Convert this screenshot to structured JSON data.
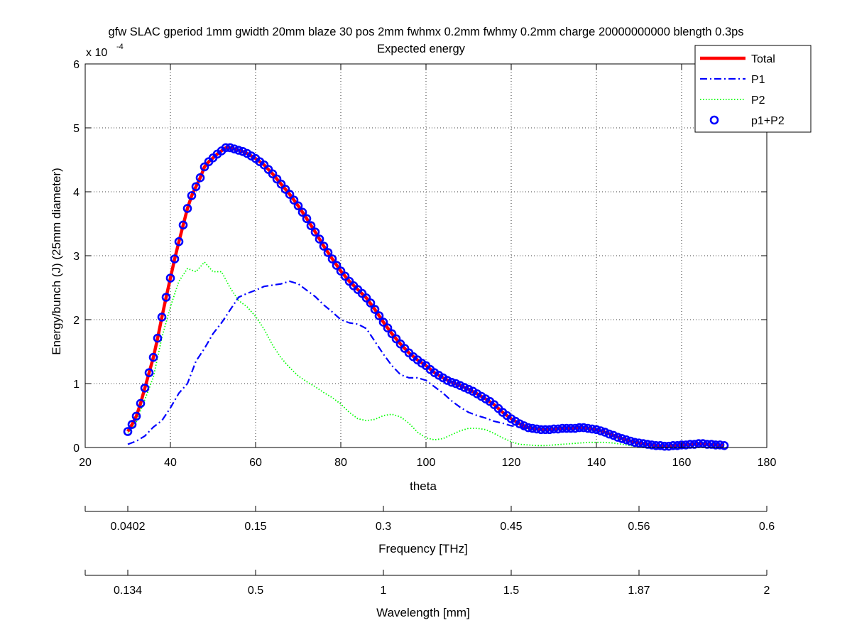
{
  "chart_data": {
    "type": "line",
    "title": "gfw SLAC gperiod 1mm gwidth 20mm blaze 30 pos 2mm fwhmx 0.2mm fwhmy 0.2mm charge 20000000000 blength 0.3ps",
    "subtitle": "Expected energy",
    "xlabel": "theta",
    "ylabel": "Energy/bunch (J) (25mm diameter)",
    "y_exponent_base": "x 10",
    "y_exponent_power": "-4",
    "xlim": [
      20,
      180
    ],
    "ylim": [
      0,
      6
    ],
    "xticks": [
      20,
      40,
      60,
      80,
      100,
      120,
      140,
      160,
      180
    ],
    "yticks": [
      0,
      1,
      2,
      3,
      4,
      5,
      6
    ],
    "grid": true,
    "legend_position": "top-right",
    "series": [
      {
        "name": "Total",
        "style": "solid",
        "color": "#ff0000",
        "x": [
          30,
          31,
          32,
          33,
          34,
          35,
          36,
          37,
          38,
          39,
          40,
          41,
          42,
          43,
          44,
          45,
          46,
          47,
          48,
          49,
          50,
          51,
          52,
          53,
          54,
          55,
          56,
          57,
          58,
          59,
          60,
          62,
          64,
          66,
          68,
          70,
          72,
          74,
          76,
          78,
          80,
          82,
          84,
          86,
          88,
          90,
          92,
          94,
          96,
          98,
          100,
          102,
          104,
          106,
          108,
          110,
          112,
          114,
          116,
          118,
          120,
          122,
          124,
          126,
          128,
          130,
          132,
          134,
          136,
          138,
          140,
          142,
          144,
          146,
          148,
          150,
          152,
          154,
          156,
          158,
          160,
          162,
          164,
          166,
          168,
          170
        ],
        "y": [
          0.25,
          0.36,
          0.49,
          0.69,
          0.93,
          1.17,
          1.41,
          1.71,
          2.04,
          2.35,
          2.65,
          2.95,
          3.22,
          3.48,
          3.74,
          3.94,
          4.08,
          4.22,
          4.39,
          4.47,
          4.53,
          4.59,
          4.64,
          4.69,
          4.69,
          4.67,
          4.65,
          4.63,
          4.6,
          4.56,
          4.52,
          4.42,
          4.28,
          4.12,
          3.96,
          3.78,
          3.58,
          3.37,
          3.15,
          2.95,
          2.76,
          2.6,
          2.47,
          2.34,
          2.16,
          1.96,
          1.78,
          1.62,
          1.48,
          1.37,
          1.28,
          1.17,
          1.09,
          1.02,
          0.97,
          0.91,
          0.84,
          0.76,
          0.67,
          0.55,
          0.45,
          0.37,
          0.31,
          0.29,
          0.28,
          0.29,
          0.3,
          0.3,
          0.31,
          0.3,
          0.28,
          0.24,
          0.19,
          0.14,
          0.1,
          0.07,
          0.05,
          0.03,
          0.02,
          0.03,
          0.04,
          0.05,
          0.06,
          0.05,
          0.04,
          0.03
        ]
      },
      {
        "name": "P1",
        "style": "dashdot",
        "color": "#0000ff",
        "x": [
          30,
          32,
          34,
          36,
          38,
          40,
          42,
          44,
          46,
          48,
          50,
          52,
          54,
          56,
          58,
          60,
          62,
          64,
          66,
          68,
          70,
          72,
          74,
          76,
          78,
          80,
          82,
          84,
          86,
          88,
          90,
          92,
          94,
          96,
          98,
          100,
          102,
          104,
          106,
          108,
          110,
          112,
          114,
          116,
          118,
          120,
          122,
          124,
          126,
          128,
          130,
          132,
          134,
          136,
          138,
          140,
          142,
          144,
          146,
          148,
          150,
          152,
          154,
          156,
          158,
          160,
          162,
          164,
          166,
          168,
          170
        ],
        "y": [
          0.05,
          0.1,
          0.18,
          0.32,
          0.42,
          0.62,
          0.85,
          1.0,
          1.35,
          1.55,
          1.78,
          1.95,
          2.15,
          2.35,
          2.41,
          2.46,
          2.52,
          2.54,
          2.56,
          2.6,
          2.56,
          2.46,
          2.36,
          2.23,
          2.12,
          2.0,
          1.95,
          1.93,
          1.86,
          1.66,
          1.46,
          1.28,
          1.14,
          1.09,
          1.09,
          1.05,
          0.95,
          0.85,
          0.73,
          0.63,
          0.55,
          0.5,
          0.46,
          0.41,
          0.38,
          0.34,
          0.32,
          0.3,
          0.3,
          0.3,
          0.3,
          0.31,
          0.32,
          0.33,
          0.31,
          0.28,
          0.24,
          0.19,
          0.14,
          0.1,
          0.07,
          0.05,
          0.03,
          0.02,
          0.03,
          0.04,
          0.05,
          0.06,
          0.05,
          0.04,
          0.03
        ]
      },
      {
        "name": "P2",
        "style": "dotted",
        "color": "#00ff00",
        "x": [
          30,
          32,
          34,
          36,
          38,
          40,
          42,
          44,
          46,
          48,
          50,
          52,
          54,
          56,
          58,
          60,
          62,
          64,
          66,
          68,
          70,
          72,
          74,
          76,
          78,
          80,
          82,
          84,
          86,
          88,
          90,
          92,
          94,
          96,
          98,
          100,
          102,
          104,
          106,
          108,
          110,
          112,
          114,
          116,
          118,
          120,
          122,
          124,
          126,
          128,
          130,
          132,
          134,
          136,
          138,
          140,
          142,
          144,
          146,
          148,
          150,
          152
        ],
        "y": [
          0.22,
          0.4,
          0.75,
          1.1,
          1.72,
          2.2,
          2.6,
          2.8,
          2.75,
          2.9,
          2.75,
          2.75,
          2.5,
          2.3,
          2.2,
          2.05,
          1.85,
          1.6,
          1.4,
          1.25,
          1.12,
          1.03,
          0.95,
          0.86,
          0.78,
          0.68,
          0.55,
          0.45,
          0.42,
          0.44,
          0.5,
          0.52,
          0.48,
          0.38,
          0.24,
          0.15,
          0.12,
          0.14,
          0.2,
          0.26,
          0.3,
          0.3,
          0.28,
          0.22,
          0.15,
          0.09,
          0.05,
          0.04,
          0.03,
          0.03,
          0.04,
          0.05,
          0.06,
          0.07,
          0.08,
          0.08,
          0.08,
          0.07,
          0.05,
          0.03,
          0.02,
          0.01
        ]
      },
      {
        "name": "p1+P2",
        "style": "circle-markers",
        "color": "#0000ff",
        "x": [
          30,
          31,
          32,
          33,
          34,
          35,
          36,
          37,
          38,
          39,
          40,
          41,
          42,
          43,
          44,
          45,
          46,
          47,
          48,
          49,
          50,
          51,
          52,
          53,
          54,
          55,
          56,
          57,
          58,
          59,
          60,
          61,
          62,
          63,
          64,
          65,
          66,
          67,
          68,
          69,
          70,
          71,
          72,
          73,
          74,
          75,
          76,
          77,
          78,
          79,
          80,
          81,
          82,
          83,
          84,
          85,
          86,
          87,
          88,
          89,
          90,
          91,
          92,
          93,
          94,
          95,
          96,
          97,
          98,
          99,
          100,
          101,
          102,
          103,
          104,
          105,
          106,
          107,
          108,
          109,
          110,
          111,
          112,
          113,
          114,
          115,
          116,
          117,
          118,
          119,
          120,
          121,
          122,
          123,
          124,
          125,
          126,
          127,
          128,
          129,
          130,
          131,
          132,
          133,
          134,
          135,
          136,
          137,
          138,
          139,
          140,
          141,
          142,
          143,
          144,
          145,
          146,
          147,
          148,
          149,
          150,
          151,
          152,
          153,
          154,
          155,
          156,
          157,
          158,
          159,
          160,
          161,
          162,
          163,
          164,
          165,
          166,
          167,
          168,
          169,
          170
        ],
        "y": [
          0.25,
          0.36,
          0.49,
          0.69,
          0.93,
          1.17,
          1.41,
          1.71,
          2.04,
          2.35,
          2.65,
          2.95,
          3.22,
          3.48,
          3.74,
          3.94,
          4.08,
          4.22,
          4.39,
          4.47,
          4.53,
          4.59,
          4.64,
          4.69,
          4.69,
          4.67,
          4.65,
          4.63,
          4.6,
          4.56,
          4.52,
          4.47,
          4.42,
          4.35,
          4.28,
          4.2,
          4.12,
          4.04,
          3.96,
          3.87,
          3.78,
          3.68,
          3.58,
          3.47,
          3.37,
          3.26,
          3.15,
          3.05,
          2.95,
          2.85,
          2.76,
          2.68,
          2.6,
          2.53,
          2.47,
          2.41,
          2.34,
          2.26,
          2.16,
          2.06,
          1.96,
          1.87,
          1.78,
          1.7,
          1.62,
          1.55,
          1.48,
          1.42,
          1.37,
          1.32,
          1.28,
          1.22,
          1.17,
          1.13,
          1.09,
          1.05,
          1.02,
          1.0,
          0.97,
          0.94,
          0.91,
          0.88,
          0.84,
          0.8,
          0.76,
          0.72,
          0.67,
          0.61,
          0.55,
          0.5,
          0.45,
          0.41,
          0.37,
          0.34,
          0.31,
          0.3,
          0.29,
          0.28,
          0.28,
          0.28,
          0.29,
          0.29,
          0.3,
          0.3,
          0.3,
          0.3,
          0.31,
          0.31,
          0.3,
          0.29,
          0.28,
          0.26,
          0.24,
          0.21,
          0.19,
          0.16,
          0.14,
          0.12,
          0.1,
          0.08,
          0.07,
          0.06,
          0.05,
          0.04,
          0.03,
          0.03,
          0.02,
          0.02,
          0.03,
          0.03,
          0.04,
          0.04,
          0.05,
          0.05,
          0.06,
          0.06,
          0.05,
          0.05,
          0.04,
          0.04,
          0.03
        ]
      }
    ],
    "secondary_axes": [
      {
        "label": "Frequency [THz]",
        "tick_labels": [
          "0.0402",
          "0.15",
          "0.3",
          "0.45",
          "0.56",
          "0.6"
        ],
        "tick_theta": [
          30,
          60,
          90,
          120,
          150,
          180
        ]
      },
      {
        "label": "Wavelength [mm]",
        "tick_labels": [
          "0.134",
          "0.5",
          "1",
          "1.5",
          "1.87",
          "2"
        ],
        "tick_theta": [
          30,
          60,
          90,
          120,
          150,
          180
        ]
      }
    ]
  }
}
